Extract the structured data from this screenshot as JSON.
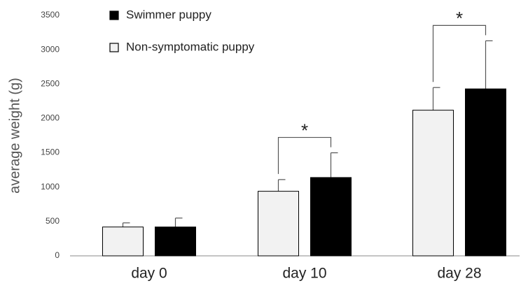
{
  "chart_data": {
    "type": "bar",
    "y_label": "average weight (g)",
    "categories": [
      "day 0",
      "day 10",
      "day 28"
    ],
    "series": [
      {
        "name": "Swimmer puppy",
        "color": "#000000",
        "values": [
          420,
          1140,
          2430
        ],
        "errors": [
          130,
          360,
          700
        ]
      },
      {
        "name": "Non-symptomatic puppy",
        "color": "#f2f2f2",
        "values": [
          420,
          940,
          2120
        ],
        "errors": [
          60,
          170,
          330
        ]
      }
    ],
    "ylim": [
      0,
      3500
    ],
    "yticks": [
      0,
      500,
      1000,
      1500,
      2000,
      2500,
      3000,
      3500
    ],
    "grid": false,
    "annotations": [
      {
        "text": "*",
        "category": 1
      },
      {
        "text": "*",
        "category": 2
      }
    ]
  }
}
